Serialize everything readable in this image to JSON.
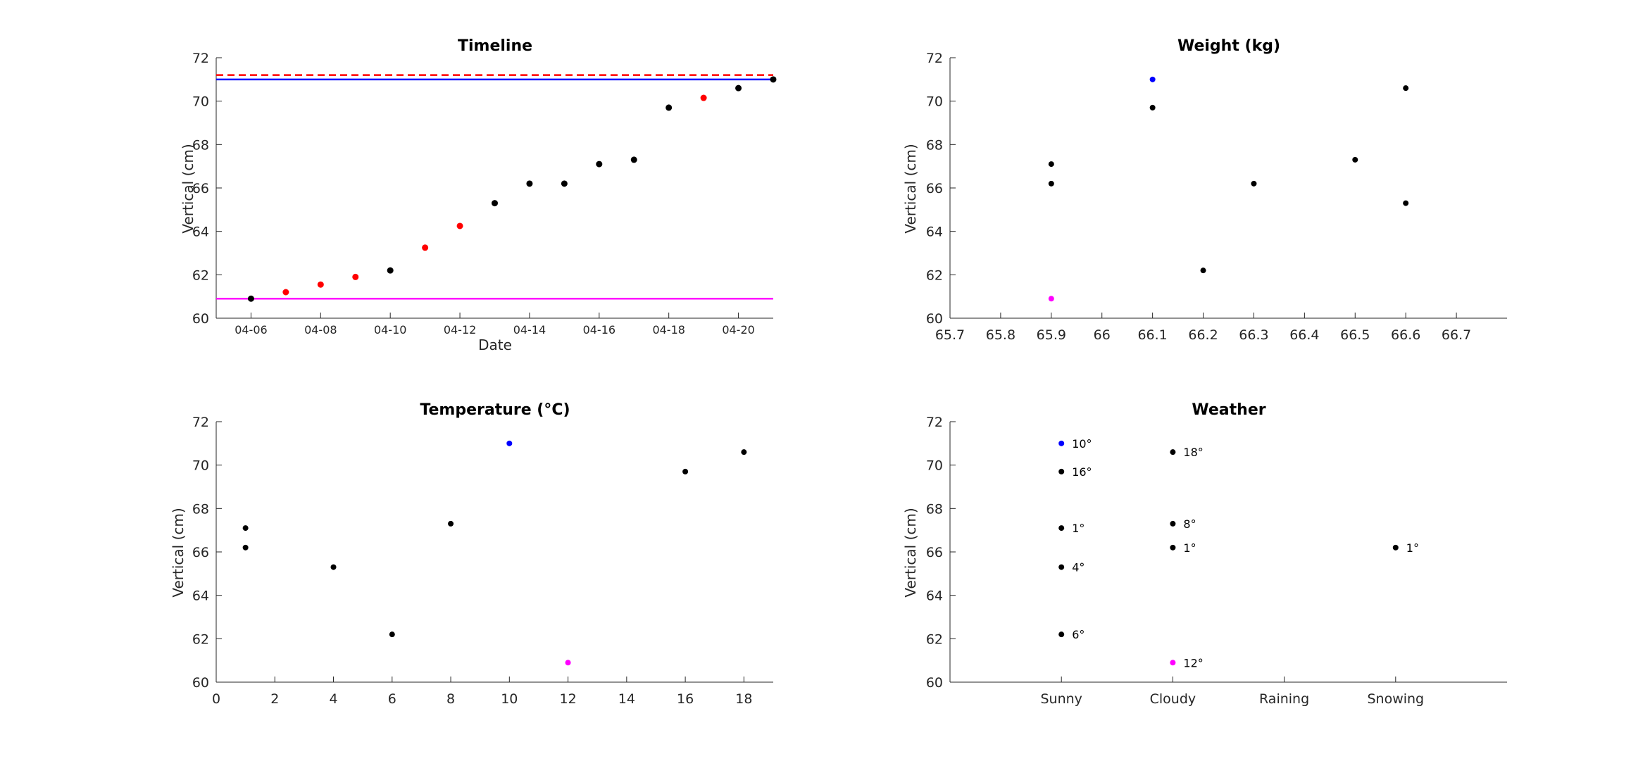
{
  "colors": {
    "point": "#000000",
    "interp_point": "#ff0000",
    "max_line": "#0000ff",
    "min_line": "#ff00ff",
    "target_line": "#ff0000",
    "max_point": "#0000ff",
    "min_point": "#ff00ff"
  },
  "chart_data": [
    {
      "type": "scatter",
      "title": "Timeline",
      "xlabel": "Date",
      "ylabel": "Vertical (cm)",
      "x_is_date": true,
      "xlim": [
        "04-05",
        "04-21"
      ],
      "ylim": [
        60,
        72
      ],
      "xticks": [
        "04-06",
        "04-08",
        "04-10",
        "04-12",
        "04-14",
        "04-16",
        "04-18",
        "04-20"
      ],
      "yticks": [
        60,
        62,
        64,
        66,
        68,
        70,
        72
      ],
      "grid": false,
      "series": [
        {
          "role": "measured",
          "color": "#000000",
          "points": [
            [
              "04-06",
              60.9
            ],
            [
              "04-10",
              62.2
            ],
            [
              "04-13",
              65.3
            ],
            [
              "04-14",
              66.2
            ],
            [
              "04-15",
              66.2
            ],
            [
              "04-16",
              67.1
            ],
            [
              "04-17",
              67.3
            ],
            [
              "04-18",
              69.7
            ],
            [
              "04-20",
              70.6
            ],
            [
              "04-21",
              71.0
            ]
          ]
        },
        {
          "role": "interpolated",
          "color": "#ff0000",
          "points": [
            [
              "04-07",
              61.2
            ],
            [
              "04-08",
              61.55
            ],
            [
              "04-09",
              61.9
            ],
            [
              "04-11",
              63.25
            ],
            [
              "04-12",
              64.25
            ],
            [
              "04-19",
              70.15
            ]
          ]
        }
      ],
      "hlines": [
        {
          "y": 71.2,
          "color": "#ff0000",
          "style": "dashed"
        },
        {
          "y": 71.0,
          "color": "#0000ff",
          "style": "solid"
        },
        {
          "y": 60.9,
          "color": "#ff00ff",
          "style": "solid"
        }
      ]
    },
    {
      "type": "scatter",
      "title": "Weight (kg)",
      "xlabel": "",
      "ylabel": "Vertical (cm)",
      "xlim": [
        65.7,
        66.8
      ],
      "ylim": [
        60,
        72
      ],
      "xticks": [
        "65.7",
        "65.8",
        "65.9",
        "66",
        "66.1",
        "66.2",
        "66.3",
        "66.4",
        "66.5",
        "66.6",
        "66.7"
      ],
      "yticks": [
        60,
        62,
        64,
        66,
        68,
        70,
        72
      ],
      "grid": false,
      "points": [
        {
          "x": 65.9,
          "y": 67.1,
          "color": "#000000"
        },
        {
          "x": 65.9,
          "y": 66.2,
          "color": "#000000"
        },
        {
          "x": 65.9,
          "y": 60.9,
          "color": "#ff00ff"
        },
        {
          "x": 66.1,
          "y": 71.0,
          "color": "#0000ff"
        },
        {
          "x": 66.1,
          "y": 69.7,
          "color": "#000000"
        },
        {
          "x": 66.2,
          "y": 62.2,
          "color": "#000000"
        },
        {
          "x": 66.3,
          "y": 66.2,
          "color": "#000000"
        },
        {
          "x": 66.5,
          "y": 67.3,
          "color": "#000000"
        },
        {
          "x": 66.6,
          "y": 70.6,
          "color": "#000000"
        },
        {
          "x": 66.6,
          "y": 65.3,
          "color": "#000000"
        }
      ]
    },
    {
      "type": "scatter",
      "title": "Temperature (°C)",
      "xlabel": "",
      "ylabel": "Vertical (cm)",
      "xlim": [
        0,
        19
      ],
      "ylim": [
        60,
        72
      ],
      "xticks": [
        "0",
        "2",
        "4",
        "6",
        "8",
        "10",
        "12",
        "14",
        "16",
        "18"
      ],
      "yticks": [
        60,
        62,
        64,
        66,
        68,
        70,
        72
      ],
      "grid": false,
      "points": [
        {
          "x": 1,
          "y": 67.1,
          "color": "#000000"
        },
        {
          "x": 1,
          "y": 66.2,
          "color": "#000000"
        },
        {
          "x": 4,
          "y": 65.3,
          "color": "#000000"
        },
        {
          "x": 6,
          "y": 62.2,
          "color": "#000000"
        },
        {
          "x": 8,
          "y": 67.3,
          "color": "#000000"
        },
        {
          "x": 10,
          "y": 71.0,
          "color": "#0000ff"
        },
        {
          "x": 12,
          "y": 60.9,
          "color": "#ff00ff"
        },
        {
          "x": 16,
          "y": 69.7,
          "color": "#000000"
        },
        {
          "x": 18,
          "y": 70.6,
          "color": "#000000"
        }
      ]
    },
    {
      "type": "scatter",
      "title": "Weather",
      "xlabel": "",
      "ylabel": "Vertical (cm)",
      "categories": [
        "Sunny",
        "Cloudy",
        "Raining",
        "Snowing"
      ],
      "ylim": [
        60,
        72
      ],
      "yticks": [
        60,
        62,
        64,
        66,
        68,
        70,
        72
      ],
      "grid": false,
      "points": [
        {
          "category": "Sunny",
          "y": 71.0,
          "label": "10°",
          "color": "#0000ff"
        },
        {
          "category": "Sunny",
          "y": 69.7,
          "label": "16°",
          "color": "#000000"
        },
        {
          "category": "Sunny",
          "y": 67.1,
          "label": "1°",
          "color": "#000000"
        },
        {
          "category": "Sunny",
          "y": 65.3,
          "label": "4°",
          "color": "#000000"
        },
        {
          "category": "Sunny",
          "y": 62.2,
          "label": "6°",
          "color": "#000000"
        },
        {
          "category": "Cloudy",
          "y": 70.6,
          "label": "18°",
          "color": "#000000"
        },
        {
          "category": "Cloudy",
          "y": 67.3,
          "label": "8°",
          "color": "#000000"
        },
        {
          "category": "Cloudy",
          "y": 66.2,
          "label": "1°",
          "color": "#000000"
        },
        {
          "category": "Cloudy",
          "y": 60.9,
          "label": "12°",
          "color": "#ff00ff"
        },
        {
          "category": "Snowing",
          "y": 66.2,
          "label": "1°",
          "color": "#000000"
        }
      ]
    }
  ]
}
